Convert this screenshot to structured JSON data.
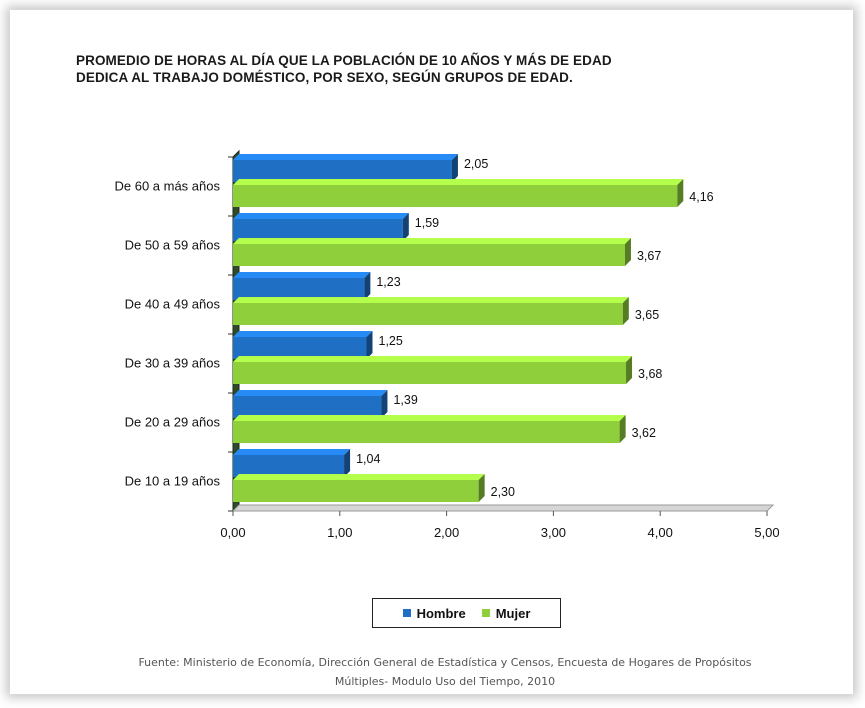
{
  "chart_data": {
    "type": "bar",
    "orientation": "horizontal",
    "title_lines": [
      "PROMEDIO DE HORAS  AL DÍA  QUE LA POBLACIÓN DE 10 AÑOS Y MÁS DE EDAD",
      "DEDICA AL TRABAJO  DOMÉSTICO, POR SEXO,  SEGÚN GRUPOS DE EDAD."
    ],
    "categories": [
      "De 60 a más años",
      "De 50 a 59 años",
      "De 40 a 49 años",
      "De 30 a 39 años",
      "De 20 a 29 años",
      "De 10 a 19 años"
    ],
    "series": [
      {
        "name": "Hombre",
        "values": [
          2.05,
          1.59,
          1.23,
          1.25,
          1.39,
          1.04
        ],
        "labels": [
          "2,05",
          "1,59",
          "1,23",
          "1,25",
          "1,39",
          "1,04"
        ],
        "color": "#1f6fc5"
      },
      {
        "name": "Mujer",
        "values": [
          4.16,
          3.67,
          3.65,
          3.68,
          3.62,
          2.3
        ],
        "labels": [
          "4,16",
          "3,67",
          "3,65",
          "3,68",
          "3,62",
          "2,30"
        ],
        "color": "#8fcf3c"
      }
    ],
    "xlim": [
      0,
      5
    ],
    "xticks": [
      0,
      1,
      2,
      3,
      4,
      5
    ],
    "xtick_labels": [
      "0,00",
      "1,00",
      "2,00",
      "3,00",
      "4,00",
      "5,00"
    ],
    "grid": false,
    "three_d": true,
    "legend_position": "bottom",
    "source_lines": [
      "Fuente: Ministerio de Economía, Dirección General de Estadística y Censos, Encuesta de Hogares de Propósitos",
      "Múltiples- Modulo Uso del Tiempo, 2010"
    ]
  },
  "colors": {
    "hombre": "#1f6fc5",
    "mujer": "#8fcf3c",
    "wall": "#2f4a2a"
  }
}
